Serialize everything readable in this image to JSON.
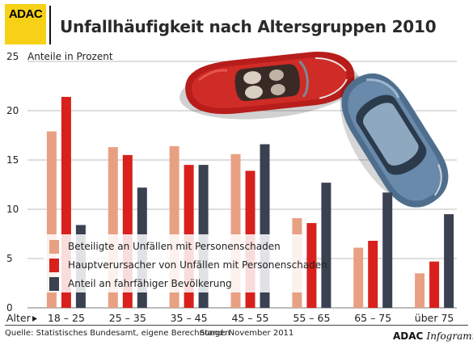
{
  "header": {
    "logo_text": "ADAC"
  },
  "footer": {
    "source": "Quelle: Statistisches Bundesamt, eigene Berechnungen",
    "stand": "Stand: November 2011",
    "brand_bold": "ADAC ",
    "brand_italic": "Infogramm"
  },
  "chart_data": {
    "type": "bar",
    "title": "Unfallhäufigkeit nach Altersgruppen 2010",
    "ylabel": "Anteile in Prozent",
    "xlabel": "Alter",
    "categories": [
      "18 – 25",
      "25 – 35",
      "35 – 45",
      "45 – 55",
      "55 – 65",
      "65 – 75",
      "über 75"
    ],
    "ylim": [
      0,
      25
    ],
    "yticks": [
      0,
      5,
      10,
      15,
      20,
      25
    ],
    "grid": true,
    "legend_position": "bottom-left",
    "series": [
      {
        "name": "Beteiligte an Unfällen mit Personenschaden",
        "color": "#e8a083",
        "values": [
          17.9,
          16.3,
          16.4,
          15.6,
          9.1,
          6.1,
          3.5
        ]
      },
      {
        "name": "Hauptverursacher von Unfällen mit Personenschaden",
        "color": "#d8201c",
        "values": [
          21.4,
          15.5,
          14.5,
          13.9,
          8.6,
          6.8,
          4.7
        ]
      },
      {
        "name": "Anteil an fahrfähiger Bevölkerung",
        "color": "#3a4150",
        "values": [
          8.4,
          12.2,
          14.5,
          16.6,
          12.7,
          11.7,
          9.5
        ]
      }
    ]
  }
}
